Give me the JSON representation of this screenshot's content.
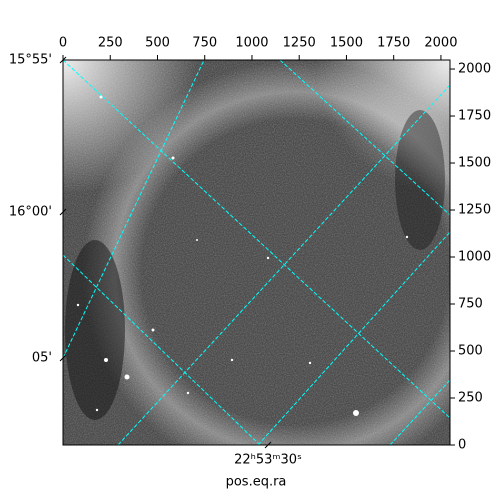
{
  "chart_data": {
    "type": "image",
    "xlabel": "pos.eq.ra",
    "xlim": [
      0,
      2048
    ],
    "xticks": [
      0,
      250,
      500,
      750,
      1000,
      1250,
      1500,
      1750,
      2000
    ],
    "ylim": [
      0,
      2048
    ],
    "yticks": [
      0,
      250,
      500,
      750,
      1000,
      1250,
      1500,
      1750,
      2000
    ],
    "wcs_yticks": [
      "15°55'",
      "16°00'",
      "05'"
    ],
    "wcs_xticks": [
      "22ʰ53ᵐ30ˢ"
    ],
    "grid_color": "#00ffff"
  }
}
